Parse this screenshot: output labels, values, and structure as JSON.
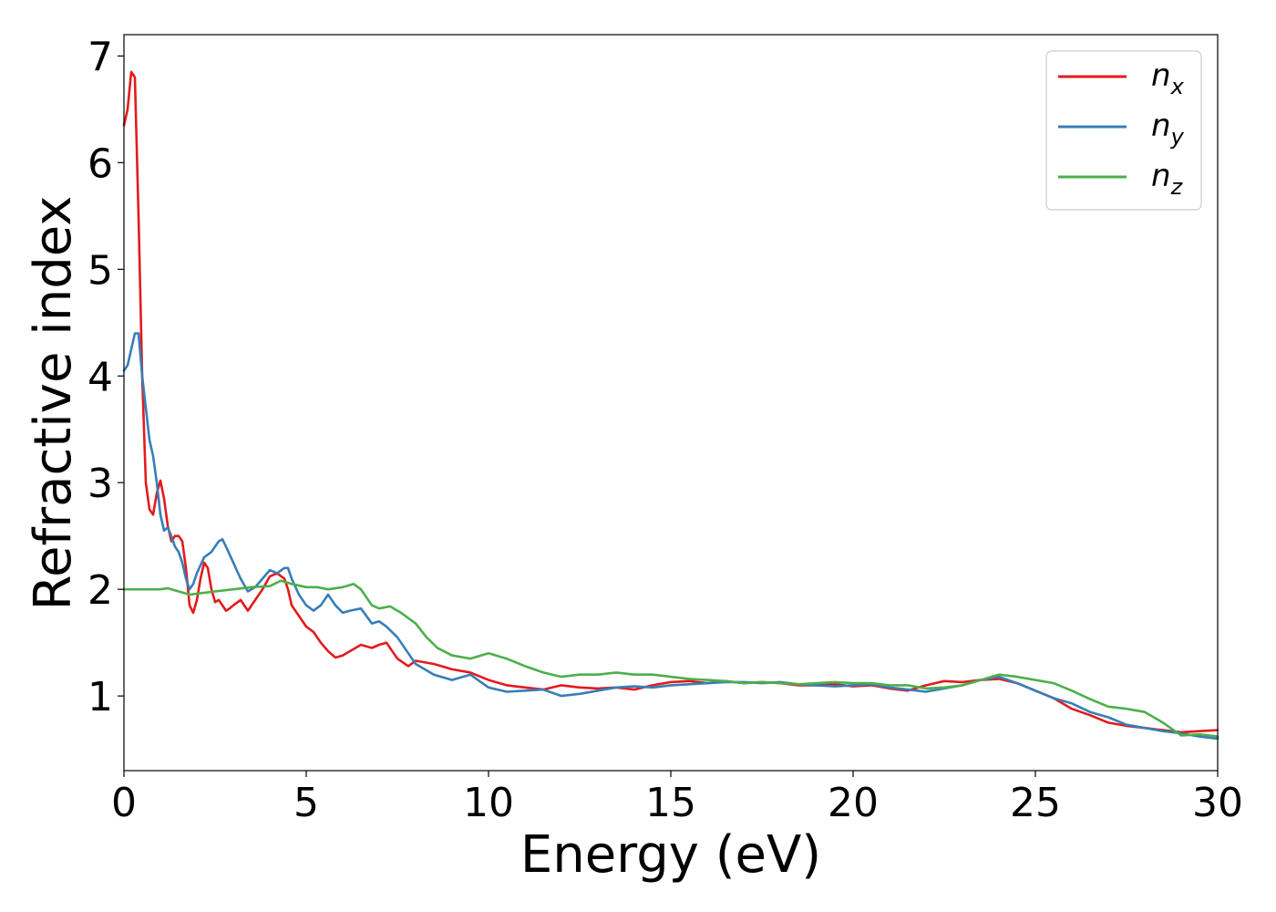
{
  "chart_data": {
    "type": "line",
    "xlabel": "Energy (eV)",
    "ylabel": "Refractive index",
    "xlim": [
      0,
      30
    ],
    "ylim": [
      0.3,
      7.2
    ],
    "xticks": [
      "0",
      "5",
      "10",
      "15",
      "20",
      "25",
      "30"
    ],
    "yticks": [
      "1",
      "2",
      "3",
      "4",
      "5",
      "6",
      "7"
    ],
    "grid": false,
    "legend_position": "top-right",
    "series": [
      {
        "name": "n_x",
        "label_base": "n",
        "label_sub": "x",
        "color": "#e41a1c",
        "x": [
          0,
          0.1,
          0.2,
          0.3,
          0.4,
          0.5,
          0.6,
          0.7,
          0.8,
          0.9,
          1.0,
          1.1,
          1.2,
          1.3,
          1.4,
          1.5,
          1.6,
          1.7,
          1.8,
          1.9,
          2.0,
          2.1,
          2.2,
          2.3,
          2.4,
          2.5,
          2.6,
          2.7,
          2.8,
          2.9,
          3.0,
          3.2,
          3.4,
          3.6,
          3.8,
          4.0,
          4.2,
          4.4,
          4.5,
          4.6,
          4.8,
          5.0,
          5.2,
          5.4,
          5.6,
          5.8,
          6.0,
          6.2,
          6.5,
          6.8,
          7.0,
          7.2,
          7.5,
          7.8,
          8.0,
          8.5,
          9.0,
          9.5,
          10.0,
          10.5,
          11.0,
          11.5,
          12.0,
          12.5,
          13.0,
          13.5,
          14.0,
          14.5,
          15.0,
          15.5,
          16.0,
          16.5,
          17.0,
          17.5,
          18.0,
          18.5,
          19.0,
          19.5,
          20.0,
          20.5,
          21.0,
          21.5,
          22.0,
          22.5,
          23.0,
          23.5,
          24.0,
          24.5,
          25.0,
          25.5,
          26.0,
          26.5,
          27.0,
          27.5,
          28.0,
          28.5,
          29.0,
          29.5,
          30.0
        ],
        "y": [
          6.35,
          6.5,
          6.85,
          6.8,
          5.5,
          4.0,
          3.0,
          2.75,
          2.7,
          2.9,
          3.02,
          2.85,
          2.6,
          2.45,
          2.5,
          2.5,
          2.45,
          2.2,
          1.85,
          1.78,
          1.9,
          2.1,
          2.25,
          2.2,
          2.0,
          1.88,
          1.9,
          1.85,
          1.8,
          1.82,
          1.85,
          1.9,
          1.8,
          1.9,
          2.0,
          2.12,
          2.15,
          2.1,
          2.0,
          1.85,
          1.75,
          1.65,
          1.6,
          1.5,
          1.42,
          1.36,
          1.38,
          1.42,
          1.48,
          1.45,
          1.48,
          1.5,
          1.35,
          1.28,
          1.33,
          1.3,
          1.25,
          1.22,
          1.15,
          1.1,
          1.08,
          1.06,
          1.1,
          1.08,
          1.07,
          1.08,
          1.06,
          1.1,
          1.13,
          1.14,
          1.12,
          1.14,
          1.12,
          1.13,
          1.12,
          1.1,
          1.1,
          1.11,
          1.09,
          1.1,
          1.07,
          1.05,
          1.1,
          1.14,
          1.13,
          1.15,
          1.16,
          1.12,
          1.05,
          0.98,
          0.88,
          0.82,
          0.75,
          0.72,
          0.7,
          0.68,
          0.66,
          0.67,
          0.68
        ]
      },
      {
        "name": "n_y",
        "label_base": "n",
        "label_sub": "y",
        "color": "#377eb8",
        "x": [
          0,
          0.1,
          0.2,
          0.3,
          0.4,
          0.5,
          0.6,
          0.7,
          0.8,
          0.9,
          1.0,
          1.1,
          1.2,
          1.3,
          1.4,
          1.5,
          1.6,
          1.7,
          1.8,
          1.9,
          2.0,
          2.2,
          2.4,
          2.6,
          2.7,
          2.8,
          3.0,
          3.2,
          3.4,
          3.6,
          3.8,
          4.0,
          4.2,
          4.4,
          4.5,
          4.6,
          4.8,
          5.0,
          5.2,
          5.4,
          5.6,
          5.8,
          6.0,
          6.2,
          6.5,
          6.8,
          7.0,
          7.2,
          7.5,
          7.8,
          8.0,
          8.5,
          9.0,
          9.5,
          10.0,
          10.5,
          11.0,
          11.5,
          12.0,
          12.5,
          13.0,
          13.5,
          14.0,
          14.5,
          15.0,
          15.5,
          16.0,
          16.5,
          17.0,
          17.5,
          18.0,
          18.5,
          19.0,
          19.5,
          20.0,
          20.5,
          21.0,
          21.5,
          22.0,
          22.5,
          23.0,
          23.5,
          24.0,
          24.5,
          25.0,
          25.5,
          26.0,
          26.5,
          27.0,
          27.5,
          28.0,
          28.5,
          29.0,
          29.5,
          30.0
        ],
        "y": [
          4.05,
          4.1,
          4.25,
          4.4,
          4.4,
          4.0,
          3.7,
          3.4,
          3.25,
          3.0,
          2.7,
          2.55,
          2.58,
          2.5,
          2.4,
          2.35,
          2.25,
          2.1,
          2.0,
          2.05,
          2.15,
          2.3,
          2.35,
          2.45,
          2.47,
          2.4,
          2.25,
          2.1,
          1.98,
          2.02,
          2.1,
          2.18,
          2.15,
          2.2,
          2.2,
          2.1,
          1.95,
          1.85,
          1.8,
          1.85,
          1.95,
          1.85,
          1.78,
          1.8,
          1.82,
          1.68,
          1.7,
          1.65,
          1.55,
          1.4,
          1.3,
          1.2,
          1.15,
          1.2,
          1.08,
          1.04,
          1.05,
          1.06,
          1.0,
          1.02,
          1.05,
          1.08,
          1.09,
          1.08,
          1.1,
          1.11,
          1.12,
          1.13,
          1.13,
          1.12,
          1.13,
          1.11,
          1.1,
          1.09,
          1.1,
          1.11,
          1.08,
          1.06,
          1.04,
          1.07,
          1.1,
          1.15,
          1.18,
          1.12,
          1.05,
          0.98,
          0.93,
          0.85,
          0.8,
          0.73,
          0.7,
          0.67,
          0.65,
          0.62,
          0.6
        ]
      },
      {
        "name": "n_z",
        "label_base": "n",
        "label_sub": "z",
        "color": "#4daf4a",
        "x": [
          0,
          0.5,
          1.0,
          1.2,
          1.5,
          1.8,
          2.0,
          2.5,
          3.0,
          3.5,
          4.0,
          4.3,
          4.6,
          5.0,
          5.3,
          5.6,
          6.0,
          6.3,
          6.5,
          6.8,
          7.0,
          7.3,
          7.6,
          8.0,
          8.3,
          8.6,
          9.0,
          9.5,
          10.0,
          10.5,
          11.0,
          11.5,
          12.0,
          12.5,
          13.0,
          13.5,
          14.0,
          14.5,
          15.0,
          15.5,
          16.0,
          16.5,
          17.0,
          17.5,
          18.0,
          18.5,
          19.0,
          19.5,
          20.0,
          20.5,
          21.0,
          21.5,
          22.0,
          22.5,
          23.0,
          23.5,
          24.0,
          24.5,
          25.0,
          25.5,
          26.0,
          26.5,
          27.0,
          27.5,
          28.0,
          28.5,
          29.0,
          29.5,
          30.0
        ],
        "y": [
          2.0,
          2.0,
          2.0,
          2.01,
          1.98,
          1.95,
          1.96,
          1.98,
          2.0,
          2.02,
          2.03,
          2.08,
          2.05,
          2.02,
          2.02,
          2.0,
          2.02,
          2.05,
          2.0,
          1.85,
          1.82,
          1.84,
          1.78,
          1.68,
          1.55,
          1.45,
          1.38,
          1.35,
          1.4,
          1.35,
          1.28,
          1.22,
          1.18,
          1.2,
          1.2,
          1.22,
          1.2,
          1.2,
          1.18,
          1.16,
          1.15,
          1.14,
          1.12,
          1.13,
          1.12,
          1.11,
          1.12,
          1.13,
          1.12,
          1.12,
          1.1,
          1.1,
          1.07,
          1.08,
          1.1,
          1.15,
          1.2,
          1.18,
          1.15,
          1.12,
          1.05,
          0.97,
          0.9,
          0.88,
          0.85,
          0.75,
          0.63,
          0.64,
          0.62
        ]
      }
    ]
  }
}
